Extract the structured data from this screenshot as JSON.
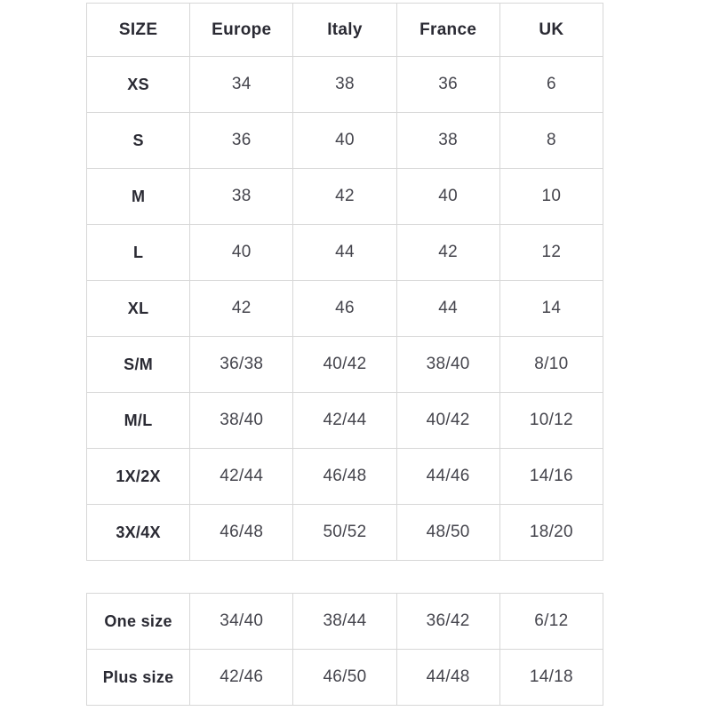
{
  "colors": {
    "background": "#ffffff",
    "border": "#d7d7d7",
    "label_text": "#2a2a33",
    "value_text": "#45454d"
  },
  "chart_data": {
    "type": "table",
    "columns": [
      "SIZE",
      "Europe",
      "Italy",
      "France",
      "UK"
    ],
    "rows": [
      [
        "XS",
        "34",
        "38",
        "36",
        "6"
      ],
      [
        "S",
        "36",
        "40",
        "38",
        "8"
      ],
      [
        "M",
        "38",
        "42",
        "40",
        "10"
      ],
      [
        "L",
        "40",
        "44",
        "42",
        "12"
      ],
      [
        "XL",
        "42",
        "46",
        "44",
        "14"
      ],
      [
        "S/M",
        "36/38",
        "40/42",
        "38/40",
        "8/10"
      ],
      [
        "M/L",
        "38/40",
        "42/44",
        "40/42",
        "10/12"
      ],
      [
        "1X/2X",
        "42/44",
        "46/48",
        "44/46",
        "14/16"
      ],
      [
        "3X/4X",
        "46/48",
        "50/52",
        "48/50",
        "18/20"
      ]
    ],
    "secondary_rows": [
      [
        "One size",
        "34/40",
        "38/44",
        "36/42",
        "6/12"
      ],
      [
        "Plus size",
        "42/46",
        "46/50",
        "44/48",
        "14/18"
      ]
    ],
    "layout": {
      "grid": true,
      "column_alignment": "center",
      "tables": 2
    }
  }
}
